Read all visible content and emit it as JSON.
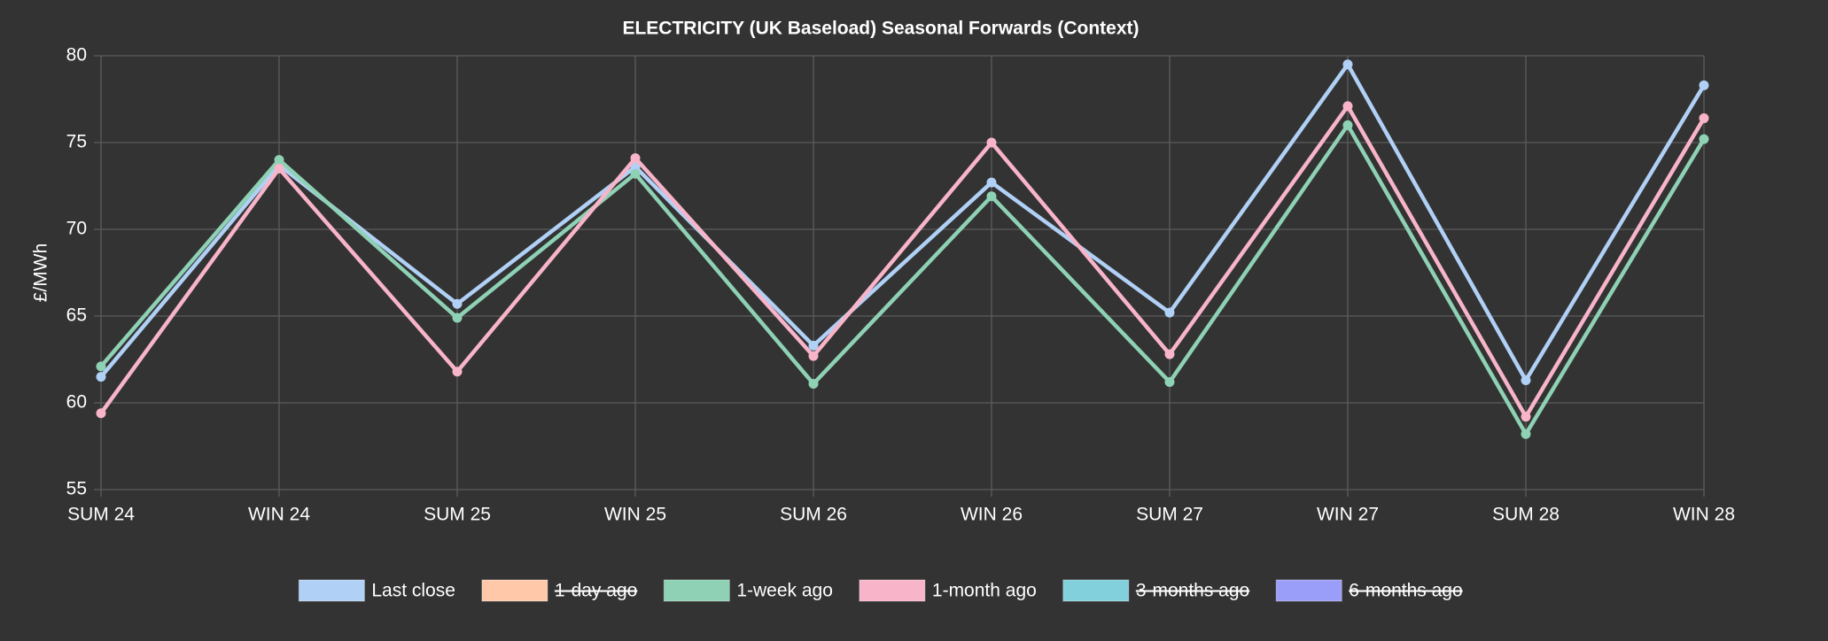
{
  "chart_data": {
    "type": "line",
    "title": "ELECTRICITY (UK Baseload) Seasonal Forwards (Context)",
    "y_label": "£/MWh",
    "categories": [
      "SUM 24",
      "WIN 24",
      "SUM 25",
      "WIN 25",
      "SUM 26",
      "WIN 26",
      "SUM 27",
      "WIN 27",
      "SUM 28",
      "WIN 28"
    ],
    "series": [
      {
        "name": "Last close",
        "color": "#b0d0f5",
        "values": [
          61.5,
          73.7,
          65.7,
          73.6,
          63.3,
          72.7,
          65.2,
          79.5,
          61.3,
          78.3
        ]
      },
      {
        "name": "1-day ago",
        "color": "#ffc8a8",
        "hidden": true
      },
      {
        "name": "1-week ago",
        "color": "#8ed1b4",
        "values": [
          62.1,
          74.0,
          64.9,
          73.2,
          61.1,
          71.9,
          61.2,
          76.0,
          58.2,
          75.2
        ]
      },
      {
        "name": "1-month ago",
        "color": "#f8b4c8",
        "values": [
          59.4,
          73.5,
          61.8,
          74.1,
          62.7,
          75.0,
          62.8,
          77.1,
          59.2,
          76.4
        ]
      },
      {
        "name": "3-months ago",
        "color": "#82d0dc",
        "hidden": true
      },
      {
        "name": "6-months ago",
        "color": "#9b9ef8",
        "hidden": true
      }
    ],
    "ylim": [
      55,
      80
    ],
    "yticks": [
      55,
      60,
      65,
      70,
      75,
      80
    ],
    "grid": true,
    "legend": "bottom"
  }
}
